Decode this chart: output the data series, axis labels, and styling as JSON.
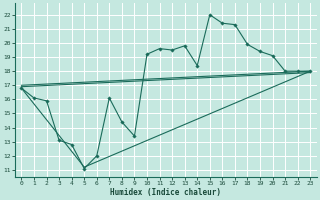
{
  "xlabel": "Humidex (Indice chaleur)",
  "xlim": [
    -0.5,
    23.5
  ],
  "ylim": [
    10.5,
    22.8
  ],
  "xticks": [
    0,
    1,
    2,
    3,
    4,
    5,
    6,
    7,
    8,
    9,
    10,
    11,
    12,
    13,
    14,
    15,
    16,
    17,
    18,
    19,
    20,
    21,
    22,
    23
  ],
  "yticks": [
    11,
    12,
    13,
    14,
    15,
    16,
    17,
    18,
    19,
    20,
    21,
    22
  ],
  "bg_color": "#c5e8e0",
  "grid_color": "#ffffff",
  "line_color": "#1a6b5a",
  "main_line": {
    "x": [
      0,
      1,
      2,
      3,
      4,
      5,
      6,
      7,
      8,
      9,
      10,
      11,
      12,
      13,
      14,
      15,
      16,
      17,
      18,
      19,
      20,
      21,
      22,
      23
    ],
    "y": [
      16.8,
      16.1,
      15.9,
      13.1,
      12.8,
      11.1,
      12.0,
      16.1,
      14.4,
      13.4,
      19.2,
      19.6,
      19.5,
      19.8,
      18.4,
      22.0,
      21.4,
      21.3,
      19.9,
      19.4,
      19.1,
      18.0,
      18.0,
      18.0
    ]
  },
  "trend_upper": {
    "x": [
      0,
      23
    ],
    "y": [
      17.0,
      18.0
    ]
  },
  "trend_middle": {
    "x": [
      0,
      23
    ],
    "y": [
      16.9,
      17.9
    ]
  },
  "trend_lower": {
    "x": [
      0,
      5,
      23
    ],
    "y": [
      16.8,
      11.2,
      18.0
    ]
  }
}
